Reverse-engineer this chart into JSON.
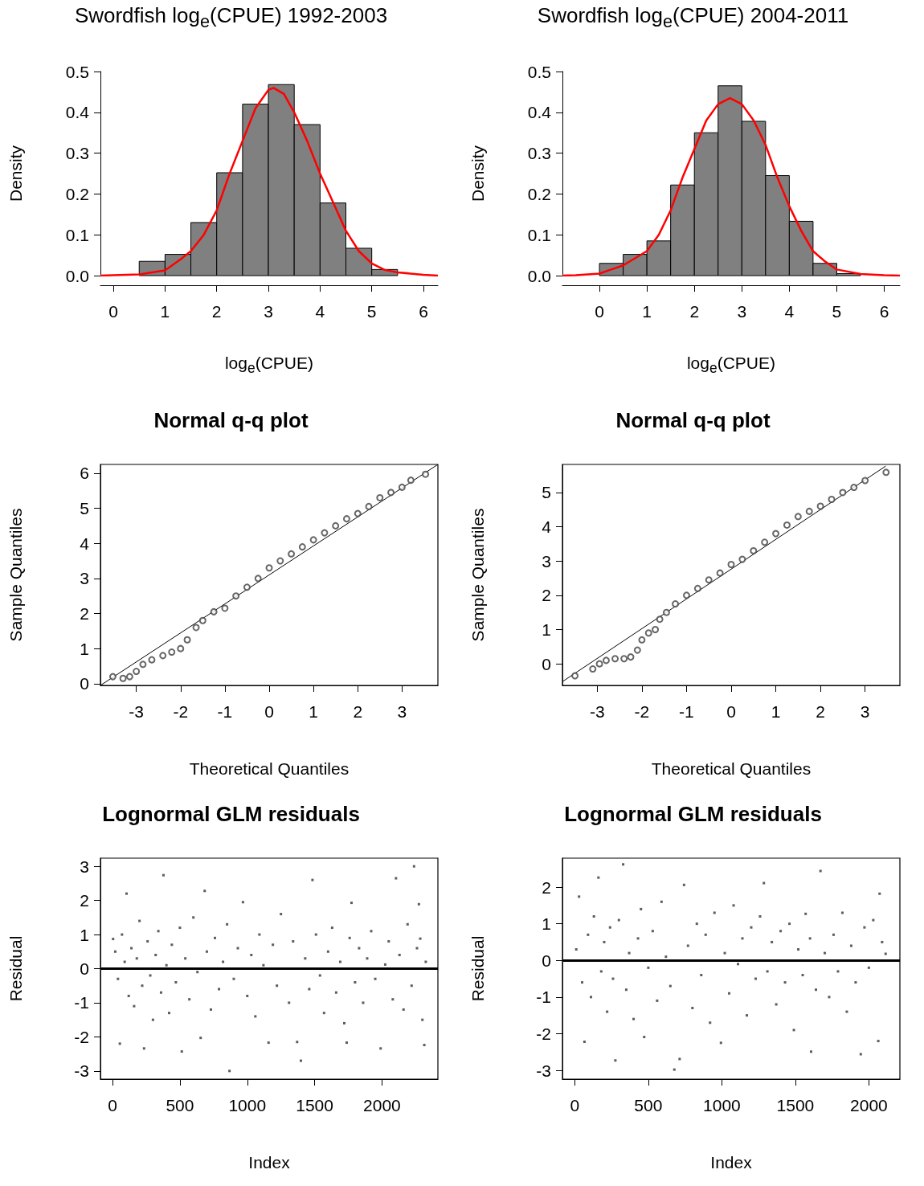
{
  "chart_data": [
    {
      "type": "histogram",
      "title": "Swordfish log$_{e}$(CPUE) 1992-2003",
      "xlabel": "log$_{e}$(CPUE)",
      "ylabel": "Density",
      "xlim": [
        -0.25,
        6.28
      ],
      "xticks": [
        0,
        1,
        2,
        3,
        4,
        5,
        6
      ],
      "ylim": [
        0,
        0.5
      ],
      "yticks": [
        {
          "value": 0,
          "label": "0.0"
        },
        0.1,
        0.2,
        0.3,
        0.4,
        0.5
      ],
      "series": [
        {
          "type": "histogram",
          "color": "#808080",
          "bins": [
            0.5,
            1,
            1.5,
            2,
            2.5,
            3,
            3.5,
            4,
            4.5,
            5,
            5.5
          ],
          "values": [
            0.035,
            0.052,
            0.13,
            0.252,
            0.42,
            0.468,
            0.37,
            0.178,
            0.067,
            0.015
          ]
        },
        {
          "type": "line",
          "color": "#ff0000",
          "marker": "none",
          "x": [
            -0.25,
            0.5,
            1,
            1.3,
            1.5,
            1.75,
            2,
            2.25,
            2.5,
            2.75,
            3,
            3.1,
            3.3,
            3.5,
            3.75,
            4,
            4.25,
            4.5,
            4.75,
            5,
            5.25,
            5.5,
            6,
            6.28
          ],
          "values": [
            0,
            0.003,
            0.013,
            0.04,
            0.06,
            0.1,
            0.16,
            0.25,
            0.33,
            0.41,
            0.455,
            0.46,
            0.445,
            0.4,
            0.33,
            0.25,
            0.18,
            0.11,
            0.06,
            0.03,
            0.014,
            0.008,
            0.002,
            0
          ]
        }
      ]
    },
    {
      "type": "histogram",
      "title": "Swordfish log$_{e}$(CPUE) 2004-2011",
      "xlabel": "log$_{e}$(CPUE)",
      "ylabel": "Density",
      "xlim": [
        -0.78,
        6.33
      ],
      "xticks": [
        0,
        1,
        2,
        3,
        4,
        5,
        6
      ],
      "ylim": [
        0,
        0.5
      ],
      "yticks": [
        {
          "value": 0,
          "label": "0.0"
        },
        0.1,
        0.2,
        0.3,
        0.4,
        0.5
      ],
      "series": [
        {
          "type": "histogram",
          "color": "#808080",
          "bins": [
            0,
            0.5,
            1,
            1.5,
            2,
            2.5,
            3,
            3.5,
            4,
            4.5,
            5,
            5.5
          ],
          "values": [
            0.03,
            0.052,
            0.085,
            0.222,
            0.35,
            0.465,
            0.378,
            0.245,
            0.133,
            0.03,
            0.005
          ]
        },
        {
          "type": "line",
          "color": "#ff0000",
          "marker": "none",
          "x": [
            -0.78,
            -0.5,
            0,
            0.5,
            1,
            1.25,
            1.5,
            1.75,
            2,
            2.25,
            2.5,
            2.75,
            3,
            3.25,
            3.5,
            3.75,
            4,
            4.25,
            4.5,
            4.75,
            5,
            5.5,
            6,
            6.33
          ],
          "values": [
            0,
            0.001,
            0.005,
            0.025,
            0.06,
            0.1,
            0.16,
            0.24,
            0.31,
            0.38,
            0.42,
            0.435,
            0.42,
            0.38,
            0.32,
            0.24,
            0.17,
            0.11,
            0.06,
            0.035,
            0.015,
            0.004,
            0.001,
            0
          ]
        }
      ]
    },
    {
      "type": "scatter",
      "title": "Normal q-q plot",
      "xlabel": "Theoretical Quantiles",
      "ylabel": "Sample Quantiles",
      "xlim": [
        -3.81,
        3.81
      ],
      "xticks": [
        -3,
        -2,
        -1,
        0,
        1,
        2,
        3
      ],
      "ylim": [
        -0.05,
        6.25
      ],
      "yticks": [
        0,
        1,
        2,
        3,
        4,
        5,
        6
      ],
      "series": [
        {
          "type": "line",
          "color": "#000000",
          "marker": "none",
          "x": [
            -3.81,
            3.81
          ],
          "values": [
            -0.05,
            6.25
          ]
        },
        {
          "type": "scatter",
          "color": "#404040",
          "marker": "circle",
          "x": [
            -3.53,
            -3.3,
            -3.15,
            -3.0,
            -2.85,
            -2.65,
            -2.4,
            -2.2,
            -2.0,
            -1.85,
            -1.65,
            -1.5,
            -1.25,
            -1.0,
            -0.75,
            -0.5,
            -0.25,
            0,
            0.25,
            0.5,
            0.75,
            1.0,
            1.25,
            1.5,
            1.75,
            2.0,
            2.25,
            2.5,
            2.75,
            3.0,
            3.2,
            3.53
          ],
          "values": [
            0.2,
            0.15,
            0.2,
            0.35,
            0.55,
            0.68,
            0.8,
            0.9,
            1.0,
            1.25,
            1.6,
            1.8,
            2.05,
            2.15,
            2.5,
            2.75,
            3.0,
            3.3,
            3.5,
            3.7,
            3.9,
            4.1,
            4.3,
            4.5,
            4.7,
            4.85,
            5.05,
            5.3,
            5.45,
            5.6,
            5.8,
            5.97
          ]
        }
      ]
    },
    {
      "type": "scatter",
      "title": "Normal q-q plot",
      "xlabel": "Theoretical Quantiles",
      "ylabel": "Sample Quantiles",
      "xlim": [
        -3.78,
        3.78
      ],
      "xticks": [
        -3,
        -2,
        -1,
        0,
        1,
        2,
        3
      ],
      "ylim": [
        -0.63,
        5.82
      ],
      "yticks": [
        0,
        1,
        2,
        3,
        4,
        5
      ],
      "series": [
        {
          "type": "line",
          "color": "#000000",
          "marker": "none",
          "x": [
            -3.78,
            3.46
          ],
          "values": [
            -0.52,
            5.77
          ]
        },
        {
          "type": "scatter",
          "color": "#404040",
          "marker": "circle",
          "x": [
            -3.5,
            -3.1,
            -2.95,
            -2.8,
            -2.6,
            -2.4,
            -2.25,
            -2.1,
            -2.0,
            -1.85,
            -1.7,
            -1.6,
            -1.45,
            -1.25,
            -1.0,
            -0.75,
            -0.5,
            -0.25,
            0,
            0.25,
            0.5,
            0.75,
            1.0,
            1.25,
            1.5,
            1.75,
            2.0,
            2.25,
            2.5,
            2.75,
            3.0,
            3.47
          ],
          "values": [
            -0.35,
            -0.15,
            0.0,
            0.1,
            0.15,
            0.15,
            0.2,
            0.4,
            0.7,
            0.9,
            1.0,
            1.3,
            1.5,
            1.75,
            2.0,
            2.2,
            2.45,
            2.65,
            2.9,
            3.05,
            3.3,
            3.55,
            3.8,
            4.05,
            4.3,
            4.45,
            4.6,
            4.8,
            5.0,
            5.15,
            5.35,
            5.59
          ]
        }
      ]
    },
    {
      "type": "scatter",
      "title": "Lognormal GLM residuals",
      "xlabel": "Index",
      "ylabel": "Residual",
      "xlim": [
        -90,
        2415
      ],
      "xticks": [
        0,
        500,
        1000,
        1500,
        2000
      ],
      "ylim": [
        -3.24,
        3.24
      ],
      "yticks": [
        -3,
        -2,
        -1,
        0,
        1,
        2,
        3
      ],
      "ref_lines": [
        {
          "axis": "y",
          "value": 0,
          "color": "#000000"
        }
      ],
      "series": [
        {
          "type": "scatter",
          "color": "#333333",
          "marker": "square",
          "x": [
            4,
            20,
            40,
            54,
            70,
            90,
            104,
            120,
            140,
            160,
            180,
            200,
            220,
            234,
            260,
            280,
            300,
            320,
            340,
            360,
            378,
            400,
            420,
            440,
            470,
            500,
            514,
            540,
            570,
            600,
            630,
            654,
            684,
            700,
            730,
            760,
            790,
            820,
            850,
            868,
            900,
            930,
            968,
            1000,
            1030,
            1060,
            1090,
            1120,
            1158,
            1190,
            1220,
            1250,
            1310,
            1340,
            1370,
            1398,
            1430,
            1460,
            1484,
            1510,
            1540,
            1570,
            1600,
            1630,
            1660,
            1690,
            1720,
            1738,
            1760,
            1774,
            1800,
            1830,
            1860,
            1890,
            1920,
            1950,
            1990,
            2024,
            2050,
            2080,
            2104,
            2130,
            2160,
            2190,
            2220,
            2238,
            2260,
            2274,
            2284,
            2300,
            2314,
            2325
          ],
          "values": [
            0.87,
            0.5,
            -0.3,
            -2.2,
            1.0,
            0.2,
            2.2,
            -0.8,
            0.6,
            -1.1,
            0.3,
            1.4,
            -0.5,
            -2.34,
            0.8,
            -0.2,
            -1.5,
            0.4,
            1.1,
            -0.7,
            2.74,
            0.1,
            -1.3,
            0.7,
            -0.4,
            1.2,
            -2.43,
            0.3,
            -0.9,
            1.5,
            -0.1,
            -2.03,
            2.28,
            0.5,
            -1.2,
            0.9,
            -0.6,
            0.2,
            1.3,
            -3.0,
            -0.3,
            0.6,
            1.95,
            -0.8,
            0.4,
            -1.4,
            1.0,
            0.1,
            -2.17,
            0.7,
            -0.5,
            1.6,
            -1.0,
            0.8,
            -2.15,
            -2.7,
            0.3,
            -0.6,
            2.6,
            1.0,
            -0.2,
            -1.3,
            0.5,
            1.2,
            -0.7,
            0.2,
            -1.6,
            -2.17,
            0.9,
            1.93,
            -0.4,
            0.6,
            -1.0,
            0.3,
            1.1,
            -0.3,
            -2.34,
            0.12,
            0.8,
            -0.9,
            2.65,
            0.4,
            -1.2,
            1.3,
            -0.5,
            3.0,
            0.6,
            1.89,
            0.88,
            -1.5,
            -2.24,
            0.2
          ]
        }
      ]
    },
    {
      "type": "scatter",
      "title": "Lognormal GLM residuals",
      "xlabel": "Index",
      "ylabel": "Residual",
      "xlim": [
        -84,
        2211
      ],
      "xticks": [
        0,
        500,
        1000,
        1500,
        2000
      ],
      "ylim": [
        -3.24,
        2.79
      ],
      "yticks": [
        -3,
        -2,
        -1,
        0,
        1,
        2
      ],
      "ref_lines": [
        {
          "axis": "y",
          "value": 0,
          "color": "#000000"
        }
      ],
      "series": [
        {
          "type": "scatter",
          "color": "#333333",
          "marker": "square",
          "x": [
            10,
            29,
            50,
            66,
            90,
            110,
            130,
            161,
            180,
            200,
            220,
            240,
            260,
            276,
            300,
            329,
            350,
            370,
            400,
            430,
            450,
            472,
            500,
            530,
            560,
            590,
            620,
            650,
            677,
            713,
            743,
            770,
            800,
            830,
            860,
            890,
            920,
            950,
            994,
            1020,
            1050,
            1080,
            1110,
            1140,
            1170,
            1200,
            1230,
            1260,
            1286,
            1310,
            1340,
            1370,
            1400,
            1430,
            1460,
            1490,
            1520,
            1550,
            1570,
            1600,
            1607,
            1640,
            1671,
            1700,
            1730,
            1760,
            1790,
            1820,
            1850,
            1880,
            1910,
            1945,
            1970,
            2000,
            2030,
            2064,
            2073,
            2090,
            2114
          ],
          "values": [
            0.3,
            1.74,
            -0.6,
            -2.22,
            0.7,
            -1.0,
            1.2,
            2.26,
            -0.3,
            0.5,
            -1.4,
            0.9,
            -0.5,
            -2.73,
            1.1,
            2.62,
            -0.8,
            0.2,
            -1.6,
            0.6,
            1.4,
            -2.09,
            -0.2,
            0.8,
            -1.1,
            1.6,
            0.1,
            -0.7,
            -2.98,
            -2.69,
            2.06,
            0.4,
            -1.3,
            1.0,
            -0.4,
            0.7,
            -1.7,
            1.3,
            -2.25,
            0.2,
            -0.9,
            1.5,
            -0.1,
            0.6,
            -1.5,
            0.9,
            -0.5,
            1.2,
            2.11,
            -0.3,
            0.5,
            -1.2,
            0.8,
            -0.6,
            1.0,
            -1.9,
            0.3,
            -0.4,
            1.27,
            0.6,
            -2.49,
            -0.8,
            2.44,
            0.2,
            -1.0,
            0.7,
            -0.3,
            1.3,
            -1.4,
            0.4,
            -0.6,
            -2.56,
            0.9,
            -0.2,
            1.1,
            -2.2,
            1.82,
            0.5,
            0.18
          ]
        }
      ]
    }
  ]
}
